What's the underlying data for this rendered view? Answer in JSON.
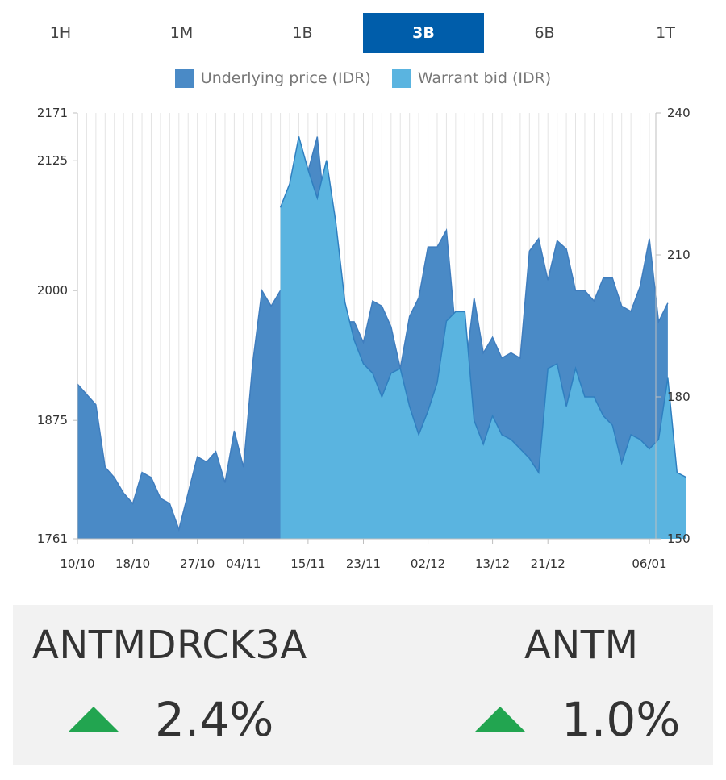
{
  "colors": {
    "active_tab_bg": "#005DAA",
    "underlying": "#4A8AC6",
    "underlying_line": "#3F7DBE",
    "warrant": "#5AB4E0",
    "warrant_line": "#2F7FC0",
    "up_arrow": "#22A550",
    "grid": "#e4e4e4",
    "axis": "#bfbfbf"
  },
  "tabs": [
    {
      "label": "1H",
      "active": false
    },
    {
      "label": "1M",
      "active": false
    },
    {
      "label": "1B",
      "active": false
    },
    {
      "label": "3B",
      "active": true
    },
    {
      "label": "6B",
      "active": false
    },
    {
      "label": "1T",
      "active": false
    }
  ],
  "chart_data": {
    "type": "area",
    "legend": [
      "Underlying price (IDR)",
      "Warrant bid (IDR)"
    ],
    "legend_position": "top-center",
    "grid": true,
    "xlim": [
      0,
      62
    ],
    "x_tick_labels": [
      {
        "i": 0,
        "label": "10/10"
      },
      {
        "i": 6,
        "label": "18/10"
      },
      {
        "i": 13,
        "label": "27/10"
      },
      {
        "i": 18,
        "label": "04/11"
      },
      {
        "i": 25,
        "label": "15/11"
      },
      {
        "i": 31,
        "label": "23/11"
      },
      {
        "i": 38,
        "label": "02/12"
      },
      {
        "i": 45,
        "label": "13/12"
      },
      {
        "i": 51,
        "label": "21/12"
      },
      {
        "i": 62,
        "label": "06/01"
      }
    ],
    "y_left": {
      "label": "Underlying price (IDR)",
      "ylim": [
        1761,
        2171
      ],
      "ticks": [
        1761,
        1875,
        2000,
        2125,
        2171
      ]
    },
    "y_right": {
      "label": "Warrant bid (IDR)",
      "ylim": [
        150,
        240
      ],
      "ticks": [
        150,
        180,
        210,
        240
      ]
    },
    "series": [
      {
        "name": "Underlying price (IDR)",
        "axis": "left",
        "values": [
          1910,
          1900,
          1890,
          1830,
          1820,
          1805,
          1795,
          1825,
          1820,
          1800,
          1795,
          1770,
          1805,
          1840,
          1835,
          1845,
          1815,
          1865,
          1830,
          1930,
          2000,
          1985,
          2000,
          2000,
          2125,
          2115,
          2148,
          2060,
          2000,
          1970,
          1970,
          1950,
          1990,
          1985,
          1965,
          1925,
          1975,
          1993,
          2042,
          2042,
          2058,
          1960,
          1920,
          1993,
          1940,
          1955,
          1935,
          1940,
          1935,
          2038,
          2050,
          2010,
          2048,
          2040,
          2000,
          2000,
          1990,
          2012,
          2012,
          1985,
          1980,
          2004,
          2050,
          1970,
          1988
        ]
      },
      {
        "name": "Warrant bid (IDR)",
        "axis": "right",
        "start_index": 22,
        "values": [
          220,
          225,
          235,
          228,
          222,
          230,
          217,
          200,
          192,
          187,
          185,
          180,
          185,
          186,
          178,
          172,
          177,
          183,
          196,
          198,
          198,
          175,
          170,
          176,
          172,
          171,
          169,
          167,
          164,
          186,
          187,
          178,
          186,
          180,
          180,
          176,
          174,
          166,
          172,
          171,
          169,
          171,
          184,
          164,
          163
        ]
      }
    ]
  },
  "panel": {
    "left": {
      "ticker": "ANTMDRCK3A",
      "change": "2.4%",
      "direction": "up-arrow-icon"
    },
    "right": {
      "ticker": "ANTM",
      "change": "1.0%",
      "direction": "up-arrow-icon"
    }
  }
}
